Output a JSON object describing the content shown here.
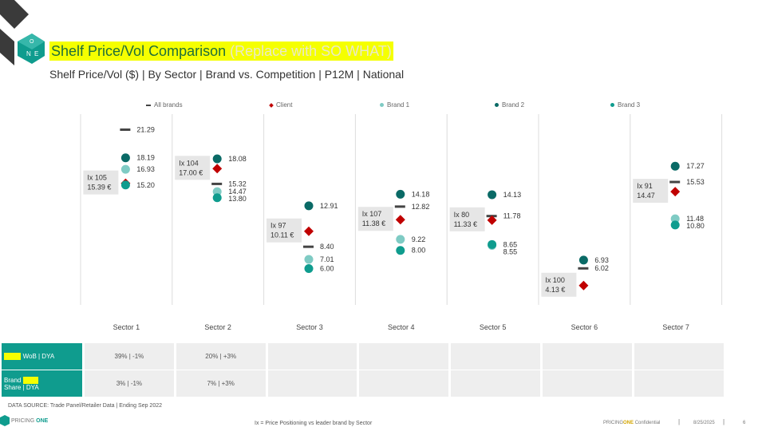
{
  "header": {
    "title": "Shelf Price/Vol Comparison",
    "title_placeholder": "(Replace with SO WHAT)",
    "subtitle": "Shelf Price/Vol ($) | By Sector | Brand vs. Competition | P12M | National"
  },
  "colors": {
    "accent": "#0f9c8e",
    "highlight": "#f5ff00",
    "all_brands": "#444444",
    "client": "#c00000",
    "brand1": "#7fcbc4",
    "brand2": "#0a6a66",
    "brand3": "#0f9c8e"
  },
  "chart_data": {
    "type": "scatter",
    "categories": [
      "Sector 1",
      "Sector 2",
      "Sector 3",
      "Sector 4",
      "Sector 5",
      "Sector 6",
      "Sector 7"
    ],
    "series": [
      {
        "name": "All brands",
        "marker": "dash",
        "values": [
          21.29,
          15.32,
          8.4,
          12.82,
          11.78,
          6.02,
          15.53
        ]
      },
      {
        "name": "Client",
        "marker": "diamond",
        "values": [
          15.39,
          17.0,
          10.11,
          11.38,
          11.33,
          4.13,
          14.47
        ]
      },
      {
        "name": "Brand 1",
        "marker": "circle",
        "values": [
          16.93,
          14.47,
          7.01,
          9.22,
          8.55,
          null,
          11.48
        ]
      },
      {
        "name": "Brand 2",
        "marker": "circle",
        "values": [
          18.19,
          18.08,
          12.91,
          14.18,
          14.13,
          6.93,
          17.27
        ]
      },
      {
        "name": "Brand 3",
        "marker": "circle",
        "values": [
          15.2,
          13.8,
          6.0,
          8.0,
          8.65,
          null,
          10.8
        ]
      }
    ],
    "client_labels": [
      {
        "index": "Ix 105",
        "price": "15.39 €"
      },
      {
        "index": "Ix 104",
        "price": "17.00 €"
      },
      {
        "index": "Ix 97",
        "price": "10.11 €"
      },
      {
        "index": "Ix 107",
        "price": "11.38 €"
      },
      {
        "index": "Ix 80",
        "price": "11.33 €"
      },
      {
        "index": "Ix 100",
        "price": "4.13 €"
      },
      {
        "index": "Ix 91",
        "price": "14.47"
      }
    ],
    "value_labels": [
      [
        {
          "s": 0,
          "t": "21.29"
        },
        {
          "s": 3,
          "t": "18.19"
        },
        {
          "s": 2,
          "t": "16.93"
        },
        {
          "s": 4,
          "t": "15.20"
        }
      ],
      [
        {
          "s": 3,
          "t": "18.08"
        },
        {
          "s": 0,
          "t": "15.32"
        },
        {
          "s": 2,
          "t": "14.47"
        },
        {
          "s": 4,
          "t": "13.80"
        }
      ],
      [
        {
          "s": 3,
          "t": "12.91"
        },
        {
          "s": 0,
          "t": "8.40"
        },
        {
          "s": 2,
          "t": "7.01"
        },
        {
          "s": 4,
          "t": "6.00"
        }
      ],
      [
        {
          "s": 3,
          "t": "14.18"
        },
        {
          "s": 0,
          "t": "12.82"
        },
        {
          "s": 2,
          "t": "9.22"
        },
        {
          "s": 4,
          "t": "8.00"
        }
      ],
      [
        {
          "s": 3,
          "t": "14.13"
        },
        {
          "s": 0,
          "t": "11.78"
        },
        {
          "s": 2,
          "t": "8.55"
        },
        {
          "s": 4,
          "t": "8.65"
        }
      ],
      [
        {
          "s": 3,
          "t": "6.93"
        },
        {
          "s": 0,
          "t": "6.02"
        }
      ],
      [
        {
          "s": 3,
          "t": "17.27"
        },
        {
          "s": 0,
          "t": "15.53"
        },
        {
          "s": 2,
          "t": "11.48"
        },
        {
          "s": 4,
          "t": "10.80"
        }
      ]
    ],
    "legend_position": "top",
    "grid": false,
    "ylim": [
      2,
      23
    ]
  },
  "table": {
    "rows": [
      {
        "label_highlight": "Brand",
        "label_rest": " WoB | DYA",
        "cells": [
          "39% | -1%",
          "20% | +3%",
          "",
          "",
          "",
          "",
          ""
        ]
      },
      {
        "label_line1": "Brand",
        "label_highlight": "Value",
        "label_line2": "Share | DYA",
        "cells": [
          "3% | -1%",
          "7% | +3%",
          "",
          "",
          "",
          "",
          ""
        ]
      }
    ]
  },
  "footer": {
    "source": "DATA SOURCE: Trade Panel/Retailer Data | Ending Sep 2022",
    "note": "Ix = Price Positioning vs leader brand by Sector",
    "brand_left_pre": "PRICING",
    "brand_left_bold": "ONE",
    "conf_pre": "PRICING",
    "conf_bold": "ONE",
    "conf_post": " Confidential",
    "date": "8/25/2025",
    "page": "6"
  }
}
